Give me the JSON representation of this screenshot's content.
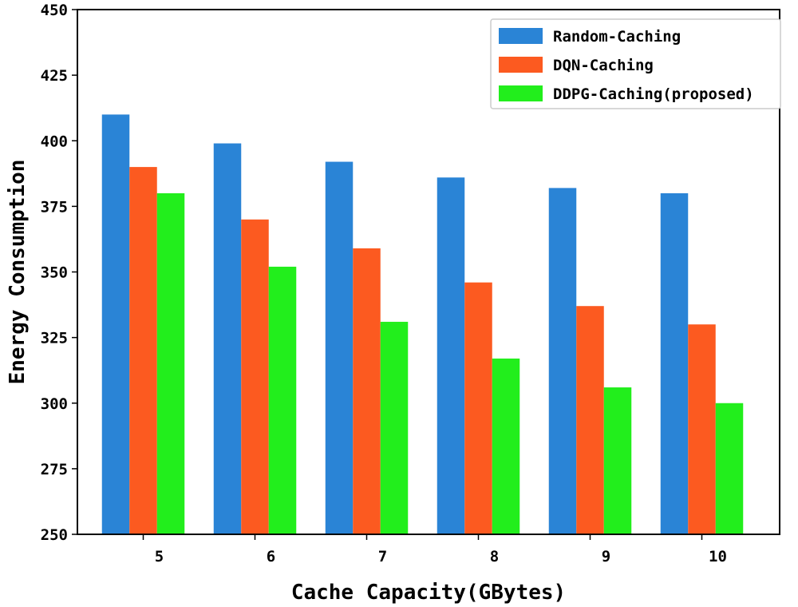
{
  "chart_data": {
    "type": "bar",
    "title": "",
    "xlabel": "Cache Capacity(GBytes)",
    "ylabel": "Energy Consumption",
    "categories": [
      "5",
      "6",
      "7",
      "8",
      "9",
      "10"
    ],
    "ylim": [
      250,
      450
    ],
    "yticks": [
      250,
      275,
      300,
      325,
      350,
      375,
      400,
      425,
      450
    ],
    "grid": false,
    "legend_position": "top-right",
    "series": [
      {
        "name": "Random-Caching",
        "color": "#2a84d6",
        "values": [
          410,
          399,
          392,
          386,
          382,
          380
        ]
      },
      {
        "name": "DQN-Caching",
        "color": "#fc5a20",
        "values": [
          390,
          370,
          359,
          346,
          337,
          330
        ]
      },
      {
        "name": "DDPG-Caching(proposed)",
        "color": "#22ee1c",
        "values": [
          380,
          352,
          331,
          317,
          306,
          300
        ]
      }
    ]
  }
}
